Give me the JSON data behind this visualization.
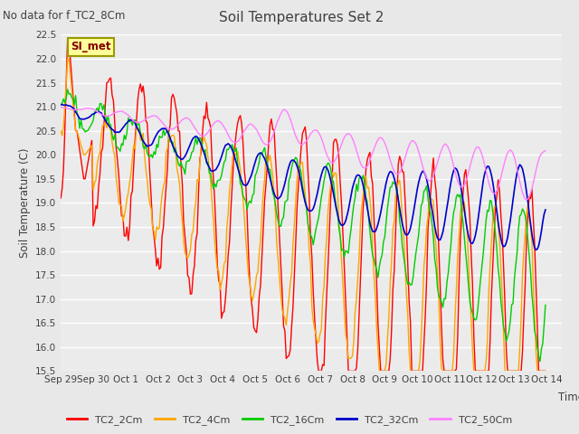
{
  "title": "Soil Temperatures Set 2",
  "subtitle": "No data for f_TC2_8Cm",
  "ylabel": "Soil Temperature (C)",
  "xlabel": "Time",
  "annotation": "SI_met",
  "ylim": [
    15.5,
    22.5
  ],
  "date_labels": [
    "Sep 29",
    "Sep 30",
    "Oct 1",
    "Oct 2",
    "Oct 3",
    "Oct 4",
    "Oct 5",
    "Oct 6",
    "Oct 7",
    "Oct 8",
    "Oct 9",
    "Oct 10",
    "Oct 11",
    "Oct 12",
    "Oct 13",
    "Oct 14"
  ],
  "colors": {
    "TC2_2Cm": "#ff0000",
    "TC2_4Cm": "#ffa500",
    "TC2_16Cm": "#00cc00",
    "TC2_32Cm": "#0000cc",
    "TC2_50Cm": "#ff80ff"
  },
  "legend_labels": [
    "TC2_2Cm",
    "TC2_4Cm",
    "TC2_16Cm",
    "TC2_32Cm",
    "TC2_50Cm"
  ],
  "fig_bg": "#e8e8e8",
  "plot_bg": "#ebebeb",
  "grid_color": "#ffffff"
}
